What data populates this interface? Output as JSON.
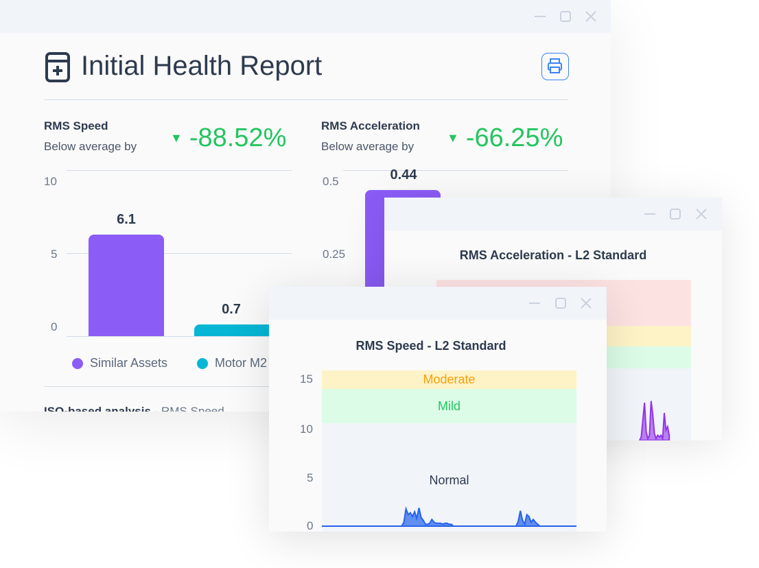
{
  "report": {
    "title": "Initial Health Report",
    "print_icon": "printer-icon",
    "title_icon": "medical-file-icon",
    "speed": {
      "label": "RMS Speed",
      "sub": "Below average by",
      "value": "-88.52%"
    },
    "accel": {
      "label": "RMS Acceleration",
      "sub": "Below average by",
      "value": "-66.25%"
    },
    "legend": [
      {
        "label": "Similar Assets",
        "color": "#8b5cf6"
      },
      {
        "label": "Motor M2",
        "color": "#06b6d4"
      }
    ],
    "iso_label": "ISO-based analysis",
    "iso_sub": "RMS Speed"
  },
  "colors": {
    "positive": "#22c55e",
    "purple": "#8b5cf6",
    "cyan": "#06b6d4",
    "blue": "#2563eb"
  },
  "chart_data": [
    {
      "type": "bar",
      "categories": [
        "Similar Assets",
        "Motor M2"
      ],
      "values": [
        6.1,
        0.7
      ],
      "ylim": [
        0,
        10
      ],
      "yticks": [
        "10",
        "5",
        "0"
      ],
      "data_labels": [
        "6.1",
        "0.7"
      ]
    },
    {
      "type": "bar",
      "categories": [
        "Similar Assets"
      ],
      "values": [
        0.44
      ],
      "ylim": [
        0,
        0.5
      ],
      "yticks": [
        "0.5",
        "0.25"
      ],
      "data_labels": [
        "0.44"
      ]
    },
    {
      "type": "area",
      "title": "RMS Acceleration - L2 Standard",
      "bands": [
        "#fde2e2",
        "#fef3c7",
        "#dcfce7",
        "#f1f4f9"
      ]
    },
    {
      "type": "area",
      "title": "RMS Speed - L2 Standard",
      "ylim": [
        0,
        16
      ],
      "yticks": [
        "15",
        "10",
        "5",
        "0"
      ],
      "bands": [
        {
          "label": "Moderate",
          "color": "#f59e0b",
          "fill": "#fef3c7"
        },
        {
          "label": "Mild",
          "color": "#22c55e",
          "fill": "#dcfce7"
        },
        {
          "label": "Normal",
          "color": "#2d3a4e",
          "fill": "#f1f4f9"
        }
      ],
      "values": [
        0,
        0,
        0,
        0,
        0,
        0,
        0,
        0,
        0,
        0,
        0,
        0,
        0,
        0,
        0,
        0,
        0,
        0,
        0,
        0,
        0,
        0,
        0,
        0,
        0,
        0,
        0,
        0,
        0,
        0,
        0,
        0,
        0,
        0,
        0,
        0,
        0,
        0,
        0.4,
        1.8,
        1.2,
        1.4,
        1.0,
        1.5,
        0.8,
        1.9,
        0.9,
        0.6,
        0.2,
        0.2,
        0.3,
        0.7,
        0.4,
        0.3,
        0.3,
        0.3,
        0.2,
        0.3,
        0.3,
        0.2,
        0.2,
        0,
        0,
        0,
        0,
        0,
        0,
        0,
        0,
        0,
        0,
        0,
        0,
        0,
        0,
        0,
        0,
        0,
        0,
        0,
        0,
        0,
        0,
        0,
        0,
        0,
        0,
        0,
        0,
        0,
        0,
        0.5,
        1.6,
        0.6,
        0.2,
        1.2,
        1.0,
        0.4,
        0.7,
        0.4,
        0.2,
        0,
        0,
        0,
        0,
        0,
        0,
        0,
        0,
        0,
        0,
        0,
        0,
        0,
        0,
        0,
        0,
        0,
        0
      ]
    }
  ],
  "acc_spikes": [
    0,
    0.2,
    1.2,
    2.2,
    0.5,
    0.1,
    0.3,
    2.3,
    1.5,
    0.4,
    0.1,
    0.3,
    0.2,
    0.3,
    0.1,
    1.6,
    0.6,
    0.8,
    0.3
  ]
}
